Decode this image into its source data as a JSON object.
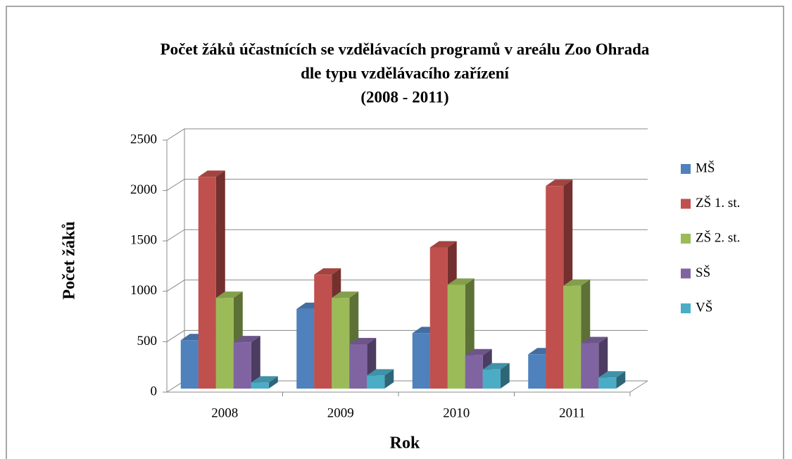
{
  "chart_data": {
    "type": "bar3d",
    "title": [
      "Počet žáků účastnících se vzdělávacích programů v areálu Zoo Ohrada",
      "dle typu vzdělávacího zařízení",
      "(2008 - 2011)"
    ],
    "x_label": "Rok",
    "y_label": "Počet žáků",
    "categories": [
      "2008",
      "2009",
      "2010",
      "2011"
    ],
    "series": [
      {
        "name": "MŠ",
        "color": "#4f81bd",
        "values": [
          480,
          790,
          550,
          340
        ]
      },
      {
        "name": "ZŠ 1. st.",
        "color": "#c0504d",
        "values": [
          2100,
          1130,
          1400,
          2010
        ]
      },
      {
        "name": "ZŠ 2. st.",
        "color": "#9bbb59",
        "values": [
          900,
          900,
          1030,
          1020
        ]
      },
      {
        "name": "SŠ",
        "color": "#8064a2",
        "values": [
          460,
          440,
          330,
          450
        ]
      },
      {
        "name": "VŠ",
        "color": "#4bacc6",
        "values": [
          60,
          130,
          190,
          110
        ]
      }
    ],
    "ylim": [
      0,
      2500
    ],
    "yticks": [
      0,
      500,
      1000,
      1500,
      2000,
      2500
    ],
    "grid": true,
    "legend": "right"
  }
}
